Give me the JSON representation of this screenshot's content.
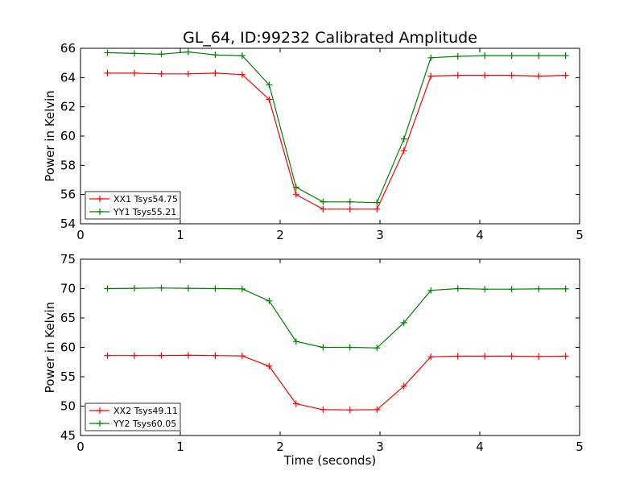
{
  "figure": {
    "title": "GL_64, ID:99232 Calibrated Amplitude",
    "xlabel": "Time (seconds)"
  },
  "chart_data": [
    {
      "type": "line",
      "title": "GL_64, ID:99232 Calibrated Amplitude",
      "xlabel": "",
      "ylabel": "Power in Kelvin",
      "xlim": [
        0,
        5
      ],
      "ylim": [
        54,
        66
      ],
      "xticks": [
        0,
        1,
        2,
        3,
        4,
        5
      ],
      "yticks": [
        54,
        56,
        58,
        60,
        62,
        64,
        66
      ],
      "grid": false,
      "legend_position": "lower-left",
      "x": [
        0.27,
        0.54,
        0.81,
        1.08,
        1.35,
        1.62,
        1.89,
        2.16,
        2.43,
        2.7,
        2.97,
        3.24,
        3.51,
        3.78,
        4.05,
        4.32,
        4.59,
        4.86
      ],
      "series": [
        {
          "name": "XX1 Tsys54.75",
          "color": "#ff0000",
          "values": [
            64.3,
            64.3,
            64.25,
            64.25,
            64.3,
            64.2,
            62.5,
            56.0,
            55.0,
            55.0,
            55.0,
            59.0,
            64.1,
            64.15,
            64.15,
            64.15,
            64.1,
            64.15
          ]
        },
        {
          "name": "YY1 Tsys55.21",
          "color": "#008000",
          "values": [
            65.7,
            65.65,
            65.6,
            65.75,
            65.55,
            65.5,
            63.5,
            56.5,
            55.5,
            55.5,
            55.45,
            59.8,
            65.35,
            65.45,
            65.5,
            65.5,
            65.5,
            65.5
          ]
        }
      ]
    },
    {
      "type": "line",
      "xlabel": "Time (seconds)",
      "ylabel": "Power in Kelvin",
      "xlim": [
        0,
        5
      ],
      "ylim": [
        45,
        75
      ],
      "xticks": [
        0,
        1,
        2,
        3,
        4,
        5
      ],
      "yticks": [
        45,
        50,
        55,
        60,
        65,
        70,
        75
      ],
      "grid": false,
      "legend_position": "lower-left",
      "x": [
        0.27,
        0.54,
        0.81,
        1.08,
        1.35,
        1.62,
        1.89,
        2.16,
        2.43,
        2.7,
        2.97,
        3.24,
        3.51,
        3.78,
        4.05,
        4.32,
        4.59,
        4.86
      ],
      "series": [
        {
          "name": "XX2 Tsys49.11",
          "color": "#ff0000",
          "values": [
            58.6,
            58.6,
            58.6,
            58.65,
            58.6,
            58.55,
            56.8,
            50.4,
            49.4,
            49.35,
            49.4,
            53.4,
            58.4,
            58.5,
            58.5,
            58.5,
            58.45,
            58.5
          ]
        },
        {
          "name": "YY2 Tsys60.05",
          "color": "#008000",
          "values": [
            70.0,
            70.05,
            70.1,
            70.05,
            70.0,
            69.95,
            67.9,
            61.0,
            60.0,
            60.0,
            59.9,
            64.2,
            69.7,
            70.0,
            69.9,
            69.9,
            69.95,
            69.95
          ]
        }
      ]
    }
  ]
}
